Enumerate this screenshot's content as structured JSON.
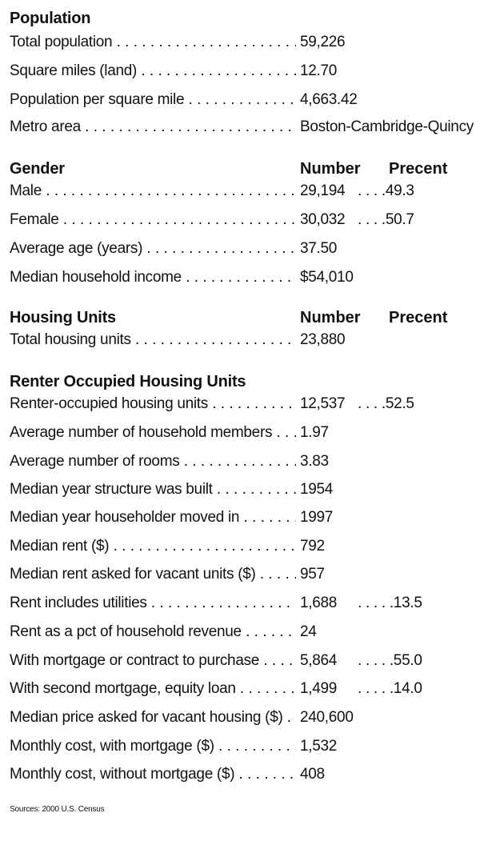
{
  "sections": {
    "population": {
      "title": "Population",
      "rows": [
        {
          "label": "Total population",
          "value": "59,226"
        },
        {
          "label": "Square miles (land)",
          "value": "12.70"
        },
        {
          "label": "Population per square mile",
          "value": "4,663.42"
        },
        {
          "label": "Metro area",
          "value": "Boston-Cambridge-Quincy"
        }
      ]
    },
    "gender": {
      "title": "Gender",
      "col_number": "Number",
      "col_percent": "Precent",
      "rows": [
        {
          "label": "Male",
          "value": "29,194",
          "pct": ". . . .49.3"
        },
        {
          "label": "Female",
          "value": "30,032",
          "pct": ". . . .50.7"
        },
        {
          "label": "Average age (years)",
          "value": "37.50"
        },
        {
          "label": "Median household income",
          "value": "$54,010"
        }
      ]
    },
    "housing": {
      "title": "Housing Units",
      "col_number": "Number",
      "col_percent": "Precent",
      "rows": [
        {
          "label": "Total housing units",
          "value": "23,880"
        }
      ]
    },
    "renter": {
      "title": "Renter Occupied Housing Units",
      "rows": [
        {
          "label": "Renter-occupied housing units",
          "value": "12,537",
          "pct": ". . . .52.5"
        },
        {
          "label": "Average number of household members",
          "value": "1.97"
        },
        {
          "label": "Average number of rooms",
          "value": "3.83"
        },
        {
          "label": "Median year structure was built",
          "value": "1954"
        },
        {
          "label": "Median year householder moved in",
          "value": "1997"
        },
        {
          "label": "Median rent ($)",
          "value": "792"
        },
        {
          "label": "Median rent asked for vacant units ($)",
          "value": "957"
        },
        {
          "label": "Rent includes utilities",
          "value": "1,688",
          "pct": ". . . . .13.5"
        },
        {
          "label": "Rent as a pct of household revenue",
          "value": "24"
        },
        {
          "label": "With mortgage or contract to purchase",
          "value": "5,864",
          "pct": ". . . . .55.0"
        },
        {
          "label": "With second mortgage, equity loan",
          "value": "1,499",
          "pct": ". . . . .14.0"
        },
        {
          "label": "Median price asked for vacant housing ($)",
          "value": "240,600"
        },
        {
          "label": "Monthly cost, with mortgage ($)",
          "value": "1,532"
        },
        {
          "label": "Monthly cost, without mortgage ($)",
          "value": "408"
        }
      ]
    }
  },
  "source": "Sources: 2000 U.S. Census"
}
